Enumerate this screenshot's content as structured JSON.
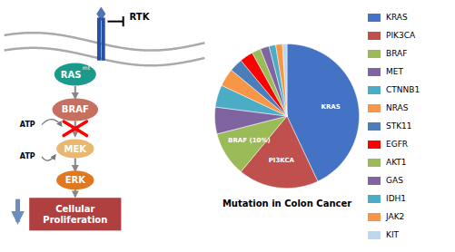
{
  "chart_data": {
    "type": "pie",
    "title": "Mutation in Colon Cancer",
    "categories": [
      "KRAS",
      "PIK3CA",
      "BRAF",
      "MET",
      "CTNNB1",
      "NRAS",
      "STK11",
      "EGFR",
      "AKT1",
      "GAS",
      "IDH1",
      "JAK2",
      "KIT"
    ],
    "slice_labels": [
      "KRAS",
      "PI3KCA",
      "BRAF (10%)",
      null,
      null,
      null,
      null,
      null,
      null,
      null,
      null,
      null,
      null
    ],
    "values": [
      43,
      18,
      10,
      6,
      5,
      4,
      3,
      3,
      2,
      2,
      1.5,
      1.5,
      1
    ],
    "colors": [
      "#4472C4",
      "#C0504D",
      "#9BBB59",
      "#8064A2",
      "#4BACC6",
      "#F79646",
      "#4A7EBB",
      "#FF0000",
      "#9BBB59",
      "#8064A2",
      "#4BACC6",
      "#F79646",
      "#BDD7EE"
    ],
    "legend": "right",
    "annotations": [
      {
        "text": "RTK",
        "color": "#2850A0"
      },
      {
        "text": "RAS",
        "color": "#1A9A8A"
      },
      {
        "text": "mt"
      },
      {
        "text": "BRAF",
        "color": "#C87060"
      },
      {
        "text": "ATP"
      },
      {
        "text": "MEK",
        "color": "#E8B870"
      },
      {
        "text": "ATP"
      },
      {
        "text": "ERK",
        "color": "#E07820"
      },
      {
        "text": "Cellular\nProliferation",
        "color": "#B04040"
      }
    ]
  }
}
